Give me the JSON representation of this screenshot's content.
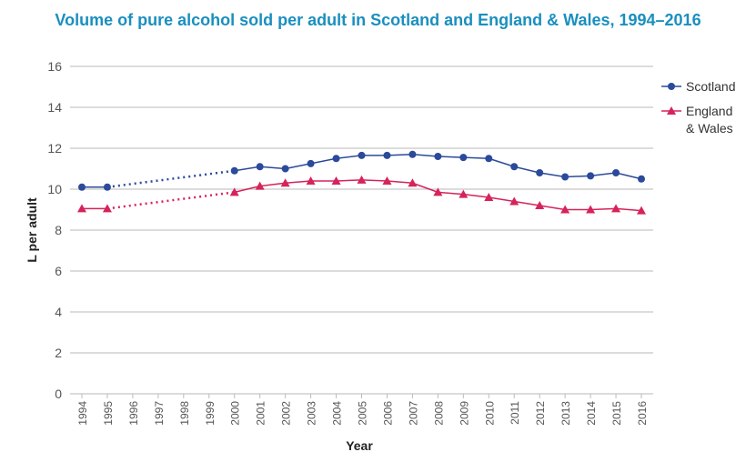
{
  "chart_data": {
    "type": "line",
    "title": "Volume of pure alcohol sold per adult in Scotland and England & Wales, 1994–2016",
    "xlabel": "Year",
    "ylabel": "L per adult",
    "ylim": [
      0,
      16
    ],
    "yticks": [
      0,
      2,
      4,
      6,
      8,
      10,
      12,
      14,
      16
    ],
    "grid": true,
    "legend_position": "right",
    "x": [
      1994,
      1995,
      1996,
      1997,
      1998,
      1999,
      2000,
      2001,
      2002,
      2003,
      2004,
      2005,
      2006,
      2007,
      2008,
      2009,
      2010,
      2011,
      2012,
      2013,
      2014,
      2015,
      2016
    ],
    "note_gap": "1995–2000 joined by dotted line (no data 1996–1999)",
    "series": [
      {
        "name": "Scotland",
        "color": "#2b4a9b",
        "marker": "circle",
        "values": [
          10.1,
          10.1,
          null,
          null,
          null,
          null,
          10.9,
          11.1,
          11.0,
          11.25,
          11.5,
          11.65,
          11.65,
          11.7,
          11.6,
          11.55,
          11.5,
          11.1,
          10.8,
          10.6,
          10.65,
          10.8,
          10.5
        ]
      },
      {
        "name": "England & Wales",
        "color": "#d6235a",
        "marker": "triangle",
        "values": [
          9.05,
          9.05,
          null,
          null,
          null,
          null,
          9.85,
          10.15,
          10.3,
          10.4,
          10.4,
          10.45,
          10.4,
          10.3,
          9.85,
          9.75,
          9.6,
          9.4,
          9.2,
          9.0,
          9.0,
          9.05,
          8.95
        ]
      }
    ],
    "legend_lines": [
      [
        "Scotland"
      ],
      [
        "England",
        "& Wales"
      ]
    ]
  }
}
